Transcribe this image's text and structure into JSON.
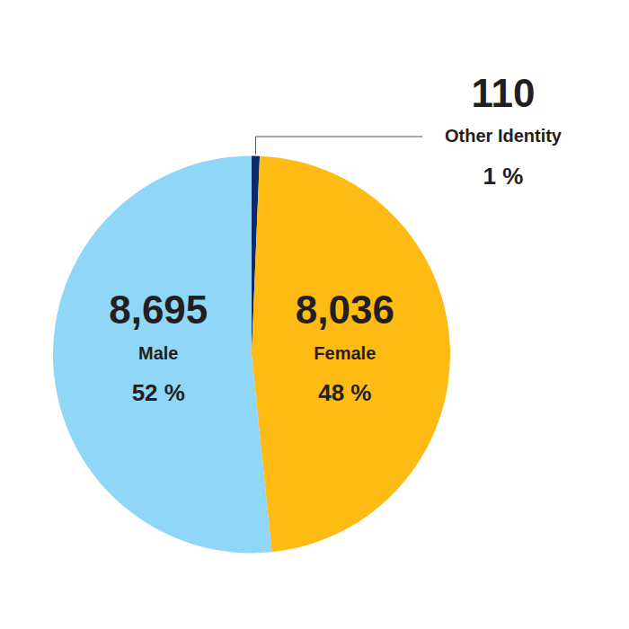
{
  "chart_data": {
    "type": "pie",
    "categories": [
      "Other Identity",
      "Female",
      "Male"
    ],
    "values": [
      110,
      8036,
      8695
    ],
    "value_labels": [
      "110",
      "8,036",
      "8,695"
    ],
    "percent_labels": [
      "1 %",
      "48 %",
      "52 %"
    ],
    "colors": [
      "#0b2a6a",
      "#fdbb13",
      "#90d6f7"
    ],
    "data_labels": true
  }
}
